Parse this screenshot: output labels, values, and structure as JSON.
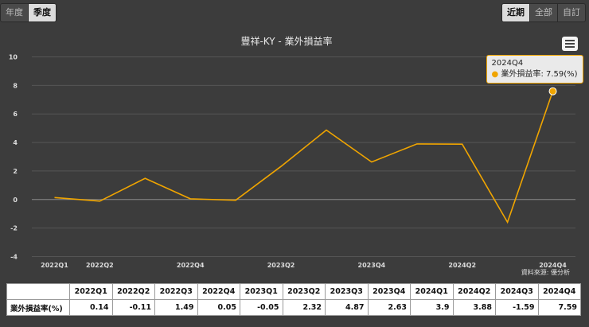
{
  "toggle_period": {
    "items": [
      "年度",
      "季度"
    ],
    "active": 1
  },
  "toggle_range": {
    "items": [
      "近期",
      "全部",
      "自訂"
    ],
    "active": 0
  },
  "menu_icon": "hamburger-menu-icon",
  "colors": {
    "line": "#f0a500",
    "background": "#3c3c3c",
    "grid": "#555555",
    "zero_line": "#8a8a8a"
  },
  "tooltip": {
    "title": "2024Q4",
    "text": "業外損益率: 7.59(%)"
  },
  "source_note": "資料來源: 優分析",
  "chart_data": {
    "type": "line",
    "title": "豐祥-KY - 業外損益率",
    "categories": [
      "2022Q1",
      "2022Q2",
      "2022Q3",
      "2022Q4",
      "2023Q1",
      "2023Q2",
      "2023Q3",
      "2023Q4",
      "2024Q1",
      "2024Q2",
      "2024Q3",
      "2024Q4"
    ],
    "x_tick_labels": [
      "2022Q1",
      "2022Q2",
      "2022Q4",
      "2023Q2",
      "2023Q4",
      "2024Q2",
      "2024Q4"
    ],
    "series": [
      {
        "values": [
          0.14,
          -0.11,
          1.49,
          0.05,
          -0.05,
          2.32,
          4.87,
          2.63,
          3.9,
          3.88,
          -1.59,
          7.59
        ]
      }
    ],
    "ylim": [
      -4,
      10
    ],
    "yticks": [
      -4,
      -2,
      0,
      2,
      4,
      6,
      8,
      10
    ],
    "grid": true,
    "legend": "none",
    "highlight_index": 11
  },
  "table": {
    "headers": [
      "2022Q1",
      "2022Q2",
      "2022Q3",
      "2022Q4",
      "2023Q1",
      "2023Q2",
      "2023Q3",
      "2023Q4",
      "2024Q1",
      "2024Q2",
      "2024Q3",
      "2024Q4"
    ],
    "row_label": "業外損益率(%)",
    "values": [
      "0.14",
      "-0.11",
      "1.49",
      "0.05",
      "-0.05",
      "2.32",
      "4.87",
      "2.63",
      "3.9",
      "3.88",
      "-1.59",
      "7.59"
    ]
  }
}
